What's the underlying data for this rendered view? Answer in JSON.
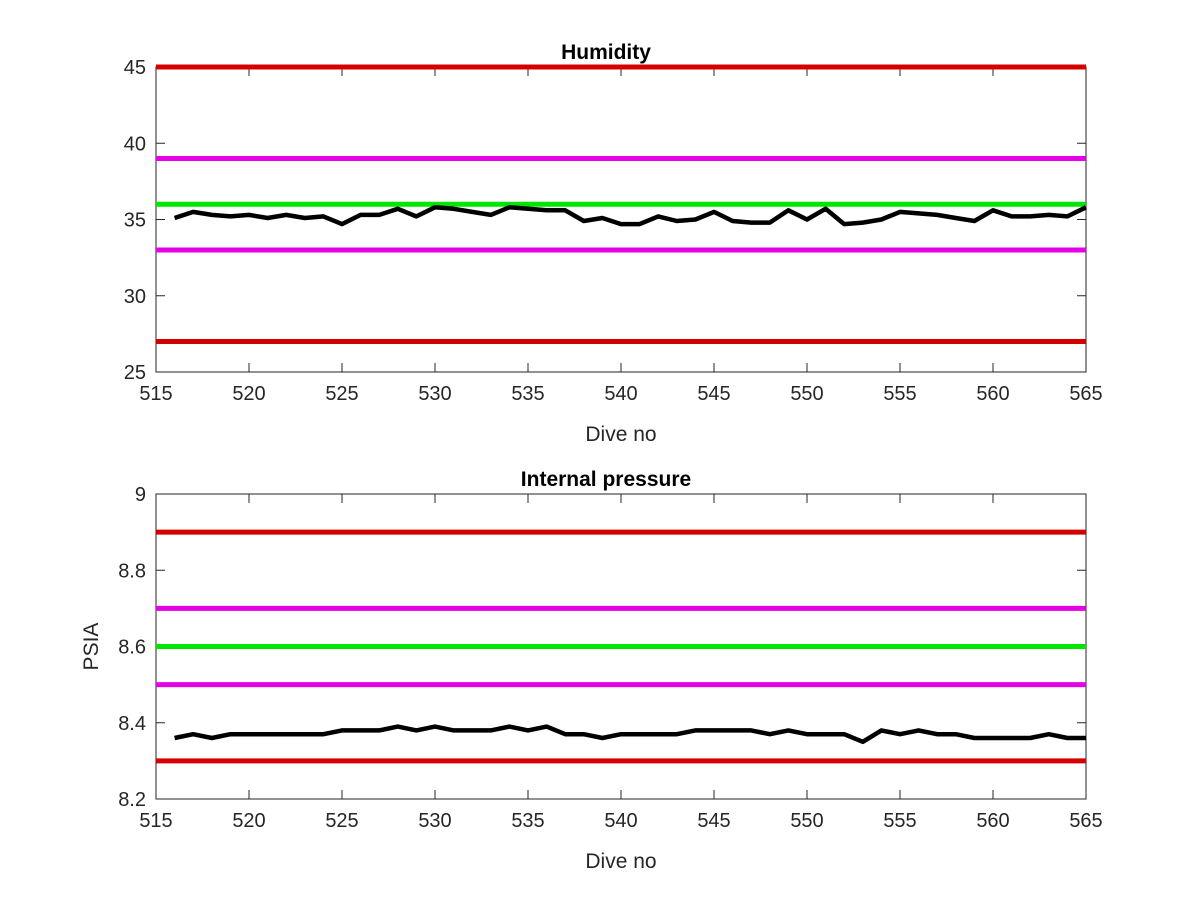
{
  "chart_data": [
    {
      "type": "line",
      "title": "Humidity",
      "xlabel": "Dive no",
      "ylabel": "",
      "xlim": [
        515,
        565
      ],
      "ylim": [
        25,
        45
      ],
      "xticks": [
        515,
        520,
        525,
        530,
        535,
        540,
        545,
        550,
        555,
        560,
        565
      ],
      "yticks": [
        25,
        30,
        35,
        40,
        45
      ],
      "grid": false,
      "reference_lines": [
        {
          "y": 45,
          "color": "#d40000"
        },
        {
          "y": 39,
          "color": "#e600e6"
        },
        {
          "y": 36,
          "color": "#00e600"
        },
        {
          "y": 33,
          "color": "#e600e6"
        },
        {
          "y": 27,
          "color": "#d40000"
        }
      ],
      "series": [
        {
          "color": "#000000",
          "x": [
            516,
            517,
            518,
            519,
            520,
            521,
            522,
            523,
            524,
            525,
            526,
            527,
            528,
            529,
            530,
            531,
            532,
            533,
            534,
            535,
            536,
            537,
            538,
            539,
            540,
            541,
            542,
            543,
            544,
            545,
            546,
            547,
            548,
            549,
            550,
            551,
            552,
            553,
            554,
            555,
            556,
            557,
            558,
            559,
            560,
            561,
            562,
            563,
            564,
            565
          ],
          "values": [
            35.1,
            35.5,
            35.3,
            35.2,
            35.3,
            35.1,
            35.3,
            35.1,
            35.2,
            34.7,
            35.3,
            35.3,
            35.7,
            35.2,
            35.8,
            35.7,
            35.5,
            35.3,
            35.8,
            35.7,
            35.6,
            35.6,
            34.9,
            35.1,
            34.7,
            34.7,
            35.2,
            34.9,
            35.0,
            35.5,
            34.9,
            34.8,
            34.8,
            35.6,
            35.0,
            35.7,
            34.7,
            34.8,
            35.0,
            35.5,
            35.4,
            35.3,
            35.1,
            34.9,
            35.6,
            35.2,
            35.2,
            35.3,
            35.2,
            35.8
          ]
        }
      ]
    },
    {
      "type": "line",
      "title": "Internal pressure",
      "xlabel": "Dive no",
      "ylabel": "PSIA",
      "xlim": [
        515,
        565
      ],
      "ylim": [
        8.2,
        9.0
      ],
      "xticks": [
        515,
        520,
        525,
        530,
        535,
        540,
        545,
        550,
        555,
        560,
        565
      ],
      "yticks": [
        8.2,
        8.4,
        8.6,
        8.8,
        9
      ],
      "ytick_labels": [
        "8.2",
        "8.4",
        "8.6",
        "8.8",
        "9"
      ],
      "grid": false,
      "reference_lines": [
        {
          "y": 8.9,
          "color": "#d40000"
        },
        {
          "y": 8.7,
          "color": "#e600e6"
        },
        {
          "y": 8.6,
          "color": "#00e600"
        },
        {
          "y": 8.5,
          "color": "#e600e6"
        },
        {
          "y": 8.3,
          "color": "#d40000"
        }
      ],
      "series": [
        {
          "color": "#000000",
          "x": [
            516,
            517,
            518,
            519,
            520,
            521,
            522,
            523,
            524,
            525,
            526,
            527,
            528,
            529,
            530,
            531,
            532,
            533,
            534,
            535,
            536,
            537,
            538,
            539,
            540,
            541,
            542,
            543,
            544,
            545,
            546,
            547,
            548,
            549,
            550,
            551,
            552,
            553,
            554,
            555,
            556,
            557,
            558,
            559,
            560,
            561,
            562,
            563,
            564,
            565
          ],
          "values": [
            8.36,
            8.37,
            8.36,
            8.37,
            8.37,
            8.37,
            8.37,
            8.37,
            8.37,
            8.38,
            8.38,
            8.38,
            8.39,
            8.38,
            8.39,
            8.38,
            8.38,
            8.38,
            8.39,
            8.38,
            8.39,
            8.37,
            8.37,
            8.36,
            8.37,
            8.37,
            8.37,
            8.37,
            8.38,
            8.38,
            8.38,
            8.38,
            8.37,
            8.38,
            8.37,
            8.37,
            8.37,
            8.35,
            8.38,
            8.37,
            8.38,
            8.37,
            8.37,
            8.36,
            8.36,
            8.36,
            8.36,
            8.37,
            8.36,
            8.36
          ]
        }
      ]
    }
  ]
}
